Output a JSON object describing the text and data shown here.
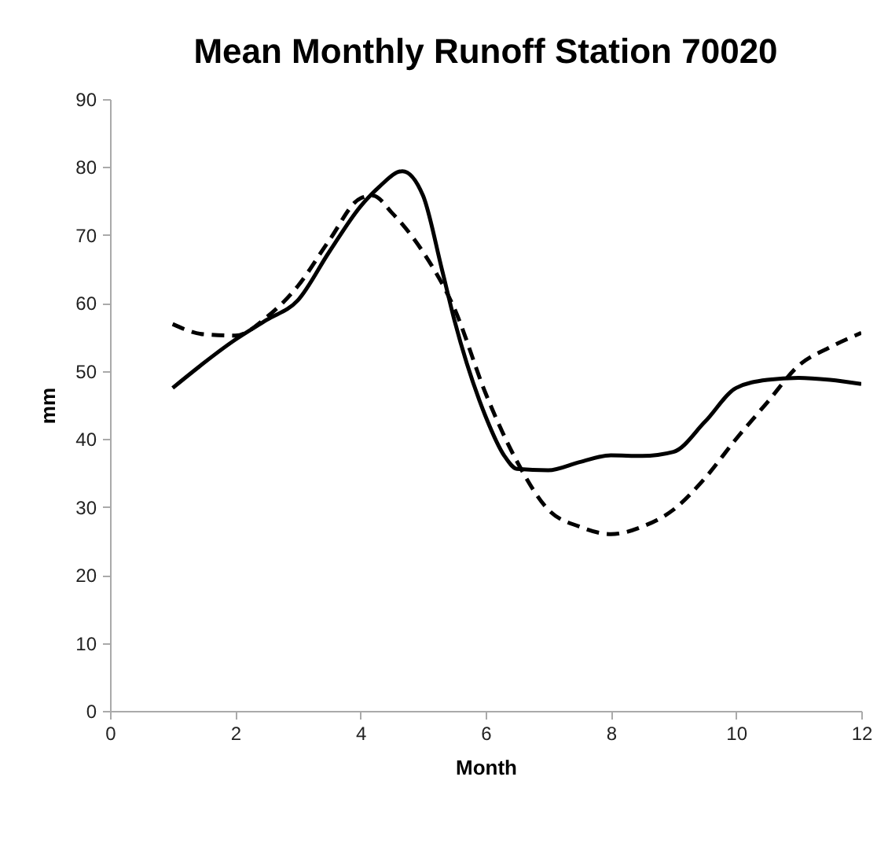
{
  "chart_data": {
    "type": "line",
    "title": "Mean Monthly Runoff Station 70020",
    "xlabel": "Month",
    "ylabel": "mm",
    "xlim": [
      0,
      12
    ],
    "xticks": [
      0,
      2,
      4,
      6,
      8,
      10,
      12
    ],
    "ylim": [
      0,
      90
    ],
    "yticks": [
      0,
      10,
      20,
      30,
      40,
      50,
      60,
      70,
      80,
      90
    ],
    "grid": false,
    "marker": "none",
    "series": [
      {
        "color": "#000000",
        "line_style": "solid",
        "x": [
          1,
          2,
          2.5,
          3,
          3.5,
          4,
          4.3,
          4.67,
          5,
          5.3,
          5.5,
          6,
          6.3,
          6.5,
          7,
          7.5,
          8,
          8.5,
          9,
          9.5,
          10,
          10.5,
          11,
          11.5,
          12
        ],
        "values": [
          47.5,
          54.6,
          57.5,
          60.4,
          67.5,
          74.2,
          77.1,
          79.4,
          75.8,
          65,
          57.5,
          43.3,
          37.5,
          35.6,
          35.4,
          36.6,
          37.6,
          37.5,
          38.1,
          42.5,
          47.5,
          48.7,
          49,
          48.7,
          48.1
        ]
      },
      {
        "color": "#000000",
        "line_style": "dashed",
        "x": [
          1,
          1.5,
          2,
          2.5,
          3,
          3.5,
          4,
          4.2,
          4.5,
          5,
          5.5,
          6,
          6.5,
          7,
          7.5,
          8,
          8.5,
          9,
          9.5,
          10,
          10.5,
          11,
          11.5,
          12
        ],
        "values": [
          56.9,
          55.4,
          55.2,
          57.9,
          62.5,
          69.2,
          75.4,
          75.8,
          73.3,
          67.5,
          59.2,
          46.7,
          36.7,
          29.6,
          27.1,
          26,
          27.1,
          29.6,
          34.2,
          40,
          45.4,
          50.8,
          53.5,
          55.6
        ]
      }
    ]
  }
}
